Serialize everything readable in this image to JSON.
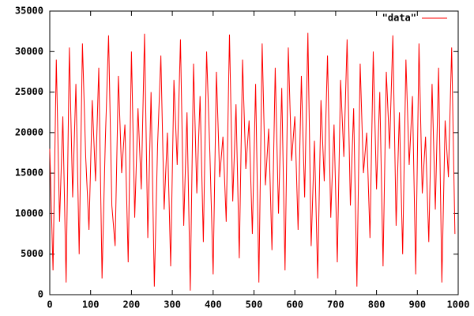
{
  "chart_data": {
    "type": "line",
    "x": [
      0,
      8,
      16,
      24,
      32,
      40,
      48,
      56,
      64,
      72,
      80,
      88,
      96,
      104,
      112,
      120,
      128,
      136,
      144,
      152,
      160,
      168,
      176,
      184,
      192,
      200,
      208,
      216,
      224,
      232,
      240,
      248,
      256,
      264,
      272,
      280,
      288,
      296,
      304,
      312,
      320,
      328,
      336,
      344,
      352,
      360,
      368,
      376,
      384,
      392,
      400,
      408,
      416,
      424,
      432,
      440,
      448,
      456,
      464,
      472,
      480,
      488,
      496,
      504,
      512,
      520,
      528,
      536,
      544,
      552,
      560,
      568,
      576,
      584,
      592,
      600,
      608,
      616,
      624,
      632,
      640,
      648,
      656,
      664,
      672,
      680,
      688,
      696,
      704,
      712,
      720,
      728,
      736,
      744,
      752,
      760,
      768,
      776,
      784,
      792,
      800,
      808,
      816,
      824,
      832,
      840,
      848,
      856,
      864,
      872,
      880,
      888,
      896,
      904,
      912,
      920,
      928,
      936,
      944,
      952,
      960,
      968,
      976,
      984,
      992
    ],
    "series": [
      {
        "name": "\"data\"",
        "color": "#ff0000",
        "values": [
          18000,
          3000,
          29000,
          9000,
          22000,
          1500,
          30500,
          12000,
          26000,
          5000,
          31000,
          17000,
          8000,
          24000,
          14000,
          28000,
          2000,
          19000,
          32000,
          11000,
          6000,
          27000,
          15000,
          21000,
          4000,
          30000,
          9500,
          23000,
          13000,
          32200,
          7000,
          25000,
          1000,
          18500,
          29500,
          10500,
          20000,
          3500,
          26500,
          16000,
          31500,
          8500,
          22500,
          500,
          28500,
          12500,
          24500,
          6500,
          30000,
          17500,
          2500,
          27500,
          14500,
          19500,
          9000,
          32100,
          11500,
          23500,
          4500,
          29000,
          15500,
          21500,
          7500,
          26000,
          1500,
          31000,
          13500,
          20500,
          5500,
          28000,
          10000,
          25500,
          3000,
          30500,
          16500,
          22000,
          8000,
          27000,
          12000,
          32300,
          6000,
          19000,
          2000,
          24000,
          14000,
          29500,
          9500,
          21000,
          4000,
          26500,
          17000,
          31500,
          11000,
          23000,
          1000,
          28500,
          15000,
          20000,
          7000,
          30000,
          13000,
          25000,
          3500,
          27500,
          18000,
          32000,
          8500,
          22500,
          5000,
          29000,
          16000,
          24500,
          2500,
          31000,
          12500,
          19500,
          6500,
          26000,
          10500,
          28000,
          1500,
          21500,
          14500,
          30500,
          7500
        ]
      }
    ],
    "xlim": [
      0,
      1000
    ],
    "xticks": [
      0,
      100,
      200,
      300,
      400,
      500,
      600,
      700,
      800,
      900,
      1000
    ],
    "ylim": [
      0,
      35000
    ],
    "yticks": [
      0,
      5000,
      10000,
      15000,
      20000,
      25000,
      30000,
      35000
    ],
    "grid": false,
    "legend": "top-right"
  }
}
